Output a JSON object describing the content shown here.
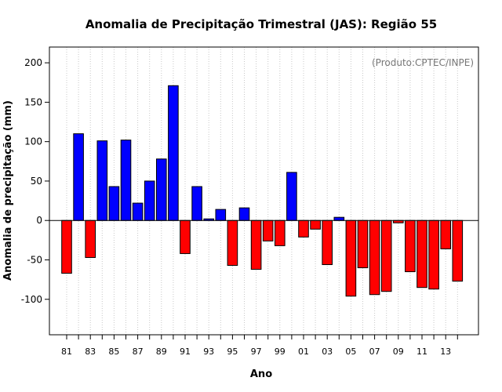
{
  "chart_data": {
    "type": "bar",
    "title": "Anomalia de Precipitação Trimestral (JAS): Região 55",
    "xlabel": "Ano",
    "ylabel": "Anomalia de precipitação (mm)",
    "credit": "(Produto:CPTEC/INPE)",
    "ylim": [
      -145,
      220
    ],
    "yticks": [
      -100,
      -50,
      0,
      50,
      100,
      150,
      200
    ],
    "grid": "vertical dotted",
    "positive_color": "#0000FF",
    "negative_color": "#FF0000",
    "categories": [
      "81",
      "82",
      "83",
      "84",
      "85",
      "86",
      "87",
      "88",
      "89",
      "90",
      "91",
      "92",
      "93",
      "94",
      "95",
      "96",
      "97",
      "98",
      "99",
      "00",
      "01",
      "02",
      "03",
      "04",
      "05",
      "06",
      "07",
      "08",
      "09",
      "10",
      "11",
      "12",
      "13",
      "14"
    ],
    "tick_labels": [
      "81",
      "83",
      "85",
      "87",
      "89",
      "91",
      "93",
      "95",
      "97",
      "99",
      "01",
      "03",
      "05",
      "07",
      "09",
      "11",
      "13"
    ],
    "values": [
      -67,
      110,
      -47,
      101,
      43,
      102,
      22,
      50,
      78,
      171,
      -42,
      43,
      2,
      14,
      -57,
      16,
      -62,
      -26,
      -32,
      61,
      -21,
      -11,
      -56,
      4,
      -96,
      -60,
      -94,
      -90,
      -3,
      -65,
      -85,
      -87,
      -36,
      -77
    ]
  }
}
